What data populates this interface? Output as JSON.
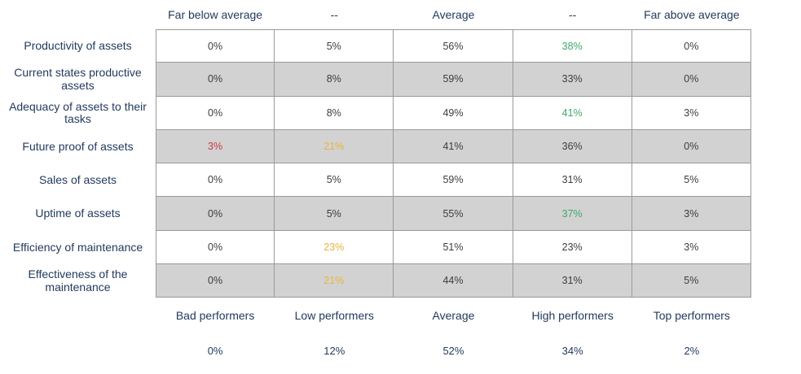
{
  "palette": {
    "navy": "#223a5e",
    "cell_text": "#3d3d3d",
    "stripe_gray": "#d2d2d2",
    "border_gray": "#9a9a9a",
    "good_green": "#3fa86c",
    "warn_amber": "#e5b53e",
    "bad_red": "#cc3a44",
    "background": "#ffffff"
  },
  "chart_data": {
    "type": "table",
    "title": "",
    "grid": true,
    "legend_position": "none",
    "columns": [
      "Far below average",
      "--",
      "Average",
      "--",
      "Far above average"
    ],
    "rows": [
      {
        "label": "Productivity of assets",
        "cells": [
          {
            "value": "0%"
          },
          {
            "value": "5%"
          },
          {
            "value": "56%"
          },
          {
            "value": "38%",
            "color": "#3fa86c"
          },
          {
            "value": "0%"
          }
        ]
      },
      {
        "label": "Current states productive assets",
        "cells": [
          {
            "value": "0%"
          },
          {
            "value": "8%"
          },
          {
            "value": "59%"
          },
          {
            "value": "33%"
          },
          {
            "value": "0%"
          }
        ]
      },
      {
        "label": "Adequacy of assets to their tasks",
        "cells": [
          {
            "value": "0%"
          },
          {
            "value": "8%"
          },
          {
            "value": "49%"
          },
          {
            "value": "41%",
            "color": "#3fa86c"
          },
          {
            "value": "3%"
          }
        ]
      },
      {
        "label": "Future proof of assets",
        "cells": [
          {
            "value": "3%",
            "color": "#cc3a44"
          },
          {
            "value": "21%",
            "color": "#e5b53e"
          },
          {
            "value": "41%"
          },
          {
            "value": "36%"
          },
          {
            "value": "0%"
          }
        ]
      },
      {
        "label": "Sales of assets",
        "cells": [
          {
            "value": "0%"
          },
          {
            "value": "5%"
          },
          {
            "value": "59%"
          },
          {
            "value": "31%"
          },
          {
            "value": "5%"
          }
        ]
      },
      {
        "label": "Uptime of assets",
        "cells": [
          {
            "value": "0%"
          },
          {
            "value": "5%"
          },
          {
            "value": "55%"
          },
          {
            "value": "37%",
            "color": "#3fa86c"
          },
          {
            "value": "3%"
          }
        ]
      },
      {
        "label": "Efficiency of maintenance",
        "cells": [
          {
            "value": "0%"
          },
          {
            "value": "23%",
            "color": "#e5b53e"
          },
          {
            "value": "51%"
          },
          {
            "value": "23%"
          },
          {
            "value": "3%"
          }
        ]
      },
      {
        "label": "Effectiveness of the maintenance",
        "cells": [
          {
            "value": "0%"
          },
          {
            "value": "21%",
            "color": "#e5b53e"
          },
          {
            "value": "44%"
          },
          {
            "value": "31%"
          },
          {
            "value": "5%"
          }
        ]
      }
    ],
    "footer": {
      "labels": [
        "Bad performers",
        "Low performers",
        "Average",
        "High performers",
        "Top performers"
      ],
      "values": [
        "0%",
        "12%",
        "52%",
        "34%",
        "2%"
      ]
    }
  }
}
